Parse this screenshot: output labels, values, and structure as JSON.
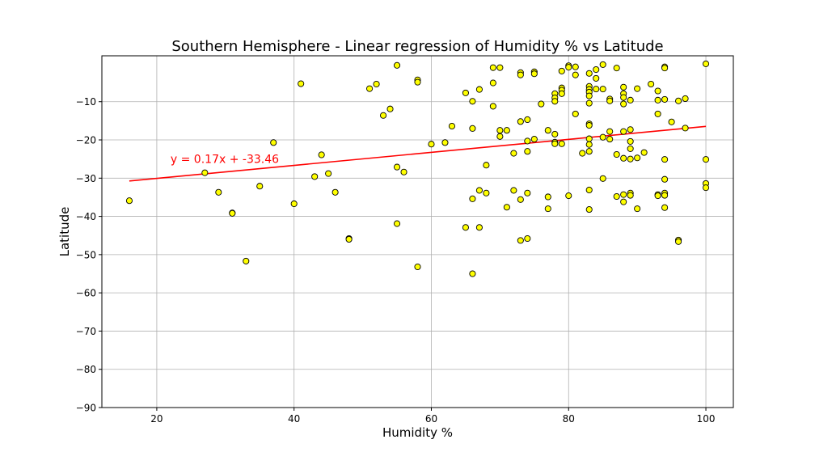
{
  "chart_data": {
    "type": "scatter",
    "title": "Southern Hemisphere - Linear regression of Humidity % vs Latitude",
    "xlabel": "Humidity %",
    "ylabel": "Latitude",
    "xlim": [
      12,
      104
    ],
    "ylim": [
      -90,
      2
    ],
    "xticks": [
      20,
      40,
      60,
      80,
      100
    ],
    "yticks": [
      -90,
      -80,
      -70,
      -60,
      -50,
      -40,
      -30,
      -20,
      -10
    ],
    "xtick_labels": [
      "20",
      "40",
      "60",
      "80",
      "100"
    ],
    "ytick_labels": [
      "−90",
      "−80",
      "−70",
      "−60",
      "−50",
      "−40",
      "−30",
      "−20",
      "−10"
    ],
    "grid": true,
    "colors": {
      "marker_fill": "#ffff00",
      "marker_edge": "#000000",
      "regression_line": "#ff0000",
      "annotation": "#ff0000"
    },
    "regression": {
      "slope": 0.17,
      "intercept": -33.46,
      "x_range": [
        16,
        100
      ]
    },
    "annotation": {
      "text": "y = 0.17x + -33.46",
      "x": 22,
      "y": -25
    },
    "points": [
      [
        16,
        -35.9
      ],
      [
        27,
        -28.6
      ],
      [
        29,
        -33.7
      ],
      [
        31,
        -39.1
      ],
      [
        31,
        -39.2
      ],
      [
        33,
        -51.7
      ],
      [
        35,
        -32.1
      ],
      [
        37,
        -20.7
      ],
      [
        40,
        -36.7
      ],
      [
        41,
        -5.3
      ],
      [
        43,
        -29.6
      ],
      [
        44,
        -23.9
      ],
      [
        45,
        -28.8
      ],
      [
        46,
        -33.7
      ],
      [
        48,
        -45.8
      ],
      [
        48,
        -46.0
      ],
      [
        51,
        -6.6
      ],
      [
        52,
        -5.4
      ],
      [
        53,
        -13.6
      ],
      [
        54,
        -11.9
      ],
      [
        55,
        -0.5
      ],
      [
        55,
        -27.1
      ],
      [
        55,
        -41.9
      ],
      [
        56,
        -28.4
      ],
      [
        58,
        -4.3
      ],
      [
        58,
        -4.9
      ],
      [
        58,
        -53.2
      ],
      [
        60,
        -21.1
      ],
      [
        62,
        -20.7
      ],
      [
        63,
        -16.4
      ],
      [
        65,
        -7.7
      ],
      [
        65,
        -42.9
      ],
      [
        66,
        -9.9
      ],
      [
        66,
        -17.0
      ],
      [
        66,
        -35.4
      ],
      [
        66,
        -55.0
      ],
      [
        67,
        -6.8
      ],
      [
        67,
        -33.2
      ],
      [
        67,
        -42.9
      ],
      [
        68,
        -33.9
      ],
      [
        68,
        -26.6
      ],
      [
        69,
        -1.1
      ],
      [
        69,
        -5.1
      ],
      [
        69,
        -11.2
      ],
      [
        70,
        -1.1
      ],
      [
        70,
        -17.5
      ],
      [
        70,
        -19.1
      ],
      [
        71,
        -17.5
      ],
      [
        71,
        -37.6
      ],
      [
        72,
        -23.5
      ],
      [
        72,
        -33.2
      ],
      [
        73,
        -2.4
      ],
      [
        73,
        -3.0
      ],
      [
        73,
        -15.2
      ],
      [
        73,
        -35.6
      ],
      [
        73,
        -46.3
      ],
      [
        74,
        -14.7
      ],
      [
        74,
        -20.3
      ],
      [
        74,
        -23.0
      ],
      [
        74,
        -33.9
      ],
      [
        74,
        -45.8
      ],
      [
        75,
        -2.2
      ],
      [
        75,
        -2.7
      ],
      [
        75,
        -19.8
      ],
      [
        76,
        -10.6
      ],
      [
        77,
        -17.5
      ],
      [
        77,
        -34.9
      ],
      [
        77,
        -38.0
      ],
      [
        78,
        -7.9
      ],
      [
        78,
        -9.0
      ],
      [
        78,
        -9.9
      ],
      [
        78,
        -18.5
      ],
      [
        78,
        -20.6
      ],
      [
        78,
        -21.0
      ],
      [
        79,
        -2.0
      ],
      [
        79,
        -6.4
      ],
      [
        79,
        -7.0
      ],
      [
        79,
        -7.9
      ],
      [
        79,
        -21.0
      ],
      [
        80,
        -0.6
      ],
      [
        80,
        -1.0
      ],
      [
        80,
        -34.6
      ],
      [
        81,
        -0.9
      ],
      [
        81,
        -3.0
      ],
      [
        81,
        -13.2
      ],
      [
        82,
        -23.5
      ],
      [
        83,
        -2.6
      ],
      [
        83,
        -6.0
      ],
      [
        83,
        -6.8
      ],
      [
        83,
        -7.5
      ],
      [
        83,
        -8.5
      ],
      [
        83,
        -10.4
      ],
      [
        83,
        -15.8
      ],
      [
        83,
        -16.2
      ],
      [
        83,
        -19.7
      ],
      [
        83,
        -21.2
      ],
      [
        83,
        -23.0
      ],
      [
        83,
        -33.1
      ],
      [
        83,
        -38.2
      ],
      [
        84,
        -1.6
      ],
      [
        84,
        -3.9
      ],
      [
        84,
        -6.7
      ],
      [
        85,
        -0.3
      ],
      [
        85,
        -6.7
      ],
      [
        85,
        -19.3
      ],
      [
        85,
        -30.1
      ],
      [
        86,
        -9.3
      ],
      [
        86,
        -9.8
      ],
      [
        86,
        -17.8
      ],
      [
        86,
        -19.8
      ],
      [
        87,
        -1.2
      ],
      [
        87,
        -23.8
      ],
      [
        87,
        -34.8
      ],
      [
        88,
        -6.2
      ],
      [
        88,
        -7.9
      ],
      [
        88,
        -8.9
      ],
      [
        88,
        -10.6
      ],
      [
        88,
        -17.8
      ],
      [
        88,
        -24.8
      ],
      [
        88,
        -34.3
      ],
      [
        88,
        -36.2
      ],
      [
        89,
        -9.6
      ],
      [
        89,
        -17.3
      ],
      [
        89,
        -20.4
      ],
      [
        89,
        -22.3
      ],
      [
        89,
        -25.0
      ],
      [
        89,
        -33.9
      ],
      [
        89,
        -34.5
      ],
      [
        90,
        -6.6
      ],
      [
        90,
        -24.7
      ],
      [
        90,
        -38.0
      ],
      [
        91,
        -23.3
      ],
      [
        92,
        -5.4
      ],
      [
        93,
        -7.2
      ],
      [
        93,
        -9.6
      ],
      [
        93,
        -13.2
      ],
      [
        93,
        -34.3
      ],
      [
        93,
        -34.6
      ],
      [
        94,
        -0.9
      ],
      [
        94,
        -1.2
      ],
      [
        94,
        -9.4
      ],
      [
        94,
        -25.1
      ],
      [
        94,
        -30.3
      ],
      [
        94,
        -33.9
      ],
      [
        94,
        -34.5
      ],
      [
        94,
        -37.7
      ],
      [
        95,
        -15.3
      ],
      [
        96,
        -9.8
      ],
      [
        96,
        -46.2
      ],
      [
        96,
        -46.6
      ],
      [
        97,
        -9.2
      ],
      [
        97,
        -16.9
      ],
      [
        100,
        -0.1
      ],
      [
        100,
        -25.1
      ],
      [
        100,
        -31.4
      ],
      [
        100,
        -32.5
      ]
    ]
  }
}
